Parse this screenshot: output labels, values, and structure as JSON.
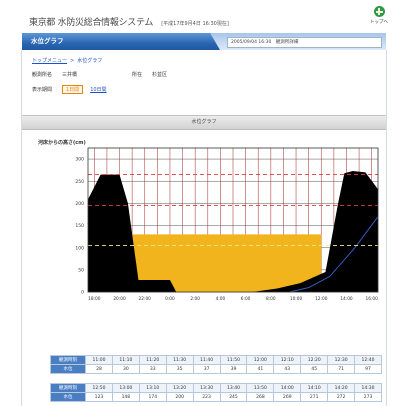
{
  "header": {
    "title": "東京都 水防災総合情報システム",
    "subtitle": "[平成17年9月4日 16:30現在]",
    "home_label": "トップへ"
  },
  "nav": {
    "page_tab": "水位グラフ",
    "status_box": "2005/09/04 16:30　観測所詳細"
  },
  "breadcrumb": {
    "top": "トップメニュー",
    "separator": ">",
    "current": "水位グラフ"
  },
  "station": {
    "name_label": "観測所名",
    "name_value": "三井橋",
    "location_label": "所在",
    "location_value": "杉並区"
  },
  "period": {
    "label": "表示期間",
    "options": [
      {
        "label": "1日間",
        "selected": true
      },
      {
        "label": "10日間",
        "selected": false
      }
    ]
  },
  "section_title": "水位グラフ",
  "colors": {
    "nav_tab": "#2a66b3",
    "selected_period": "#e8850c",
    "link": "#1f4fc9",
    "table_label": "#4a7ec3"
  },
  "chart_data": {
    "type": "area",
    "ylabel": "河床からの高さ(cm)",
    "ylim": [
      0,
      325
    ],
    "yticks": [
      0,
      50,
      100,
      150,
      200,
      250,
      300
    ],
    "xlim": [
      "17:30",
      "16:30"
    ],
    "xticks": [
      "18:00",
      "20:00",
      "22:00",
      "0:00",
      "2:00",
      "4:00",
      "6:00",
      "8:00",
      "10:00",
      "12:00",
      "14:00",
      "16:00"
    ],
    "grid": true,
    "series": [
      {
        "type": "area",
        "color": "#f2b41c",
        "points": [
          [
            "20:50",
            130
          ],
          [
            "12:00",
            130
          ]
        ]
      },
      {
        "type": "area",
        "color": "#000000",
        "points": [
          [
            "17:30",
            209
          ],
          [
            "18:30",
            265
          ],
          [
            "20:00",
            265
          ],
          [
            "20:40",
            200
          ],
          [
            "21:30",
            27
          ],
          [
            "0:00",
            27
          ],
          [
            "0:30",
            0
          ],
          [
            "6:30",
            0
          ],
          [
            "8:30",
            8
          ],
          [
            "10:20",
            20
          ],
          [
            "12:20",
            45
          ],
          [
            "13:20",
            200
          ],
          [
            "13:50",
            268
          ],
          [
            "14:30",
            273
          ],
          [
            "15:30",
            270
          ],
          [
            "16:30",
            232
          ]
        ]
      },
      {
        "type": "line",
        "color": "#3a5fd0",
        "points": [
          [
            "9:30",
            0
          ],
          [
            "11:00",
            10
          ],
          [
            "12:40",
            35
          ],
          [
            "14:40",
            100
          ],
          [
            "16:30",
            170
          ]
        ]
      }
    ],
    "reference_lines": [
      {
        "value": 265,
        "color": "#e03c3c",
        "style": "dashed"
      },
      {
        "value": 195,
        "color": "#e03c3c",
        "style": "dashed"
      },
      {
        "value": 105,
        "color": "#ffe58a",
        "style": "dashed"
      }
    ]
  },
  "tables": [
    {
      "time_label": "観測時刻",
      "value_label": "水位",
      "times": [
        "11:00",
        "11:10",
        "11:20",
        "11:30",
        "11:40",
        "11:50",
        "12:00",
        "12:10",
        "12:20",
        "12:30",
        "12:40"
      ],
      "values": [
        "28",
        "30",
        "33",
        "35",
        "37",
        "39",
        "41",
        "43",
        "45",
        "71",
        "97"
      ]
    },
    {
      "time_label": "観測時刻",
      "value_label": "水位",
      "times": [
        "12:50",
        "13:00",
        "13:10",
        "13:20",
        "13:30",
        "13:40",
        "13:50",
        "14:00",
        "14:10",
        "14:20",
        "14:30"
      ],
      "values": [
        "123",
        "148",
        "174",
        "200",
        "223",
        "245",
        "268",
        "269",
        "271",
        "272",
        "273"
      ]
    }
  ]
}
